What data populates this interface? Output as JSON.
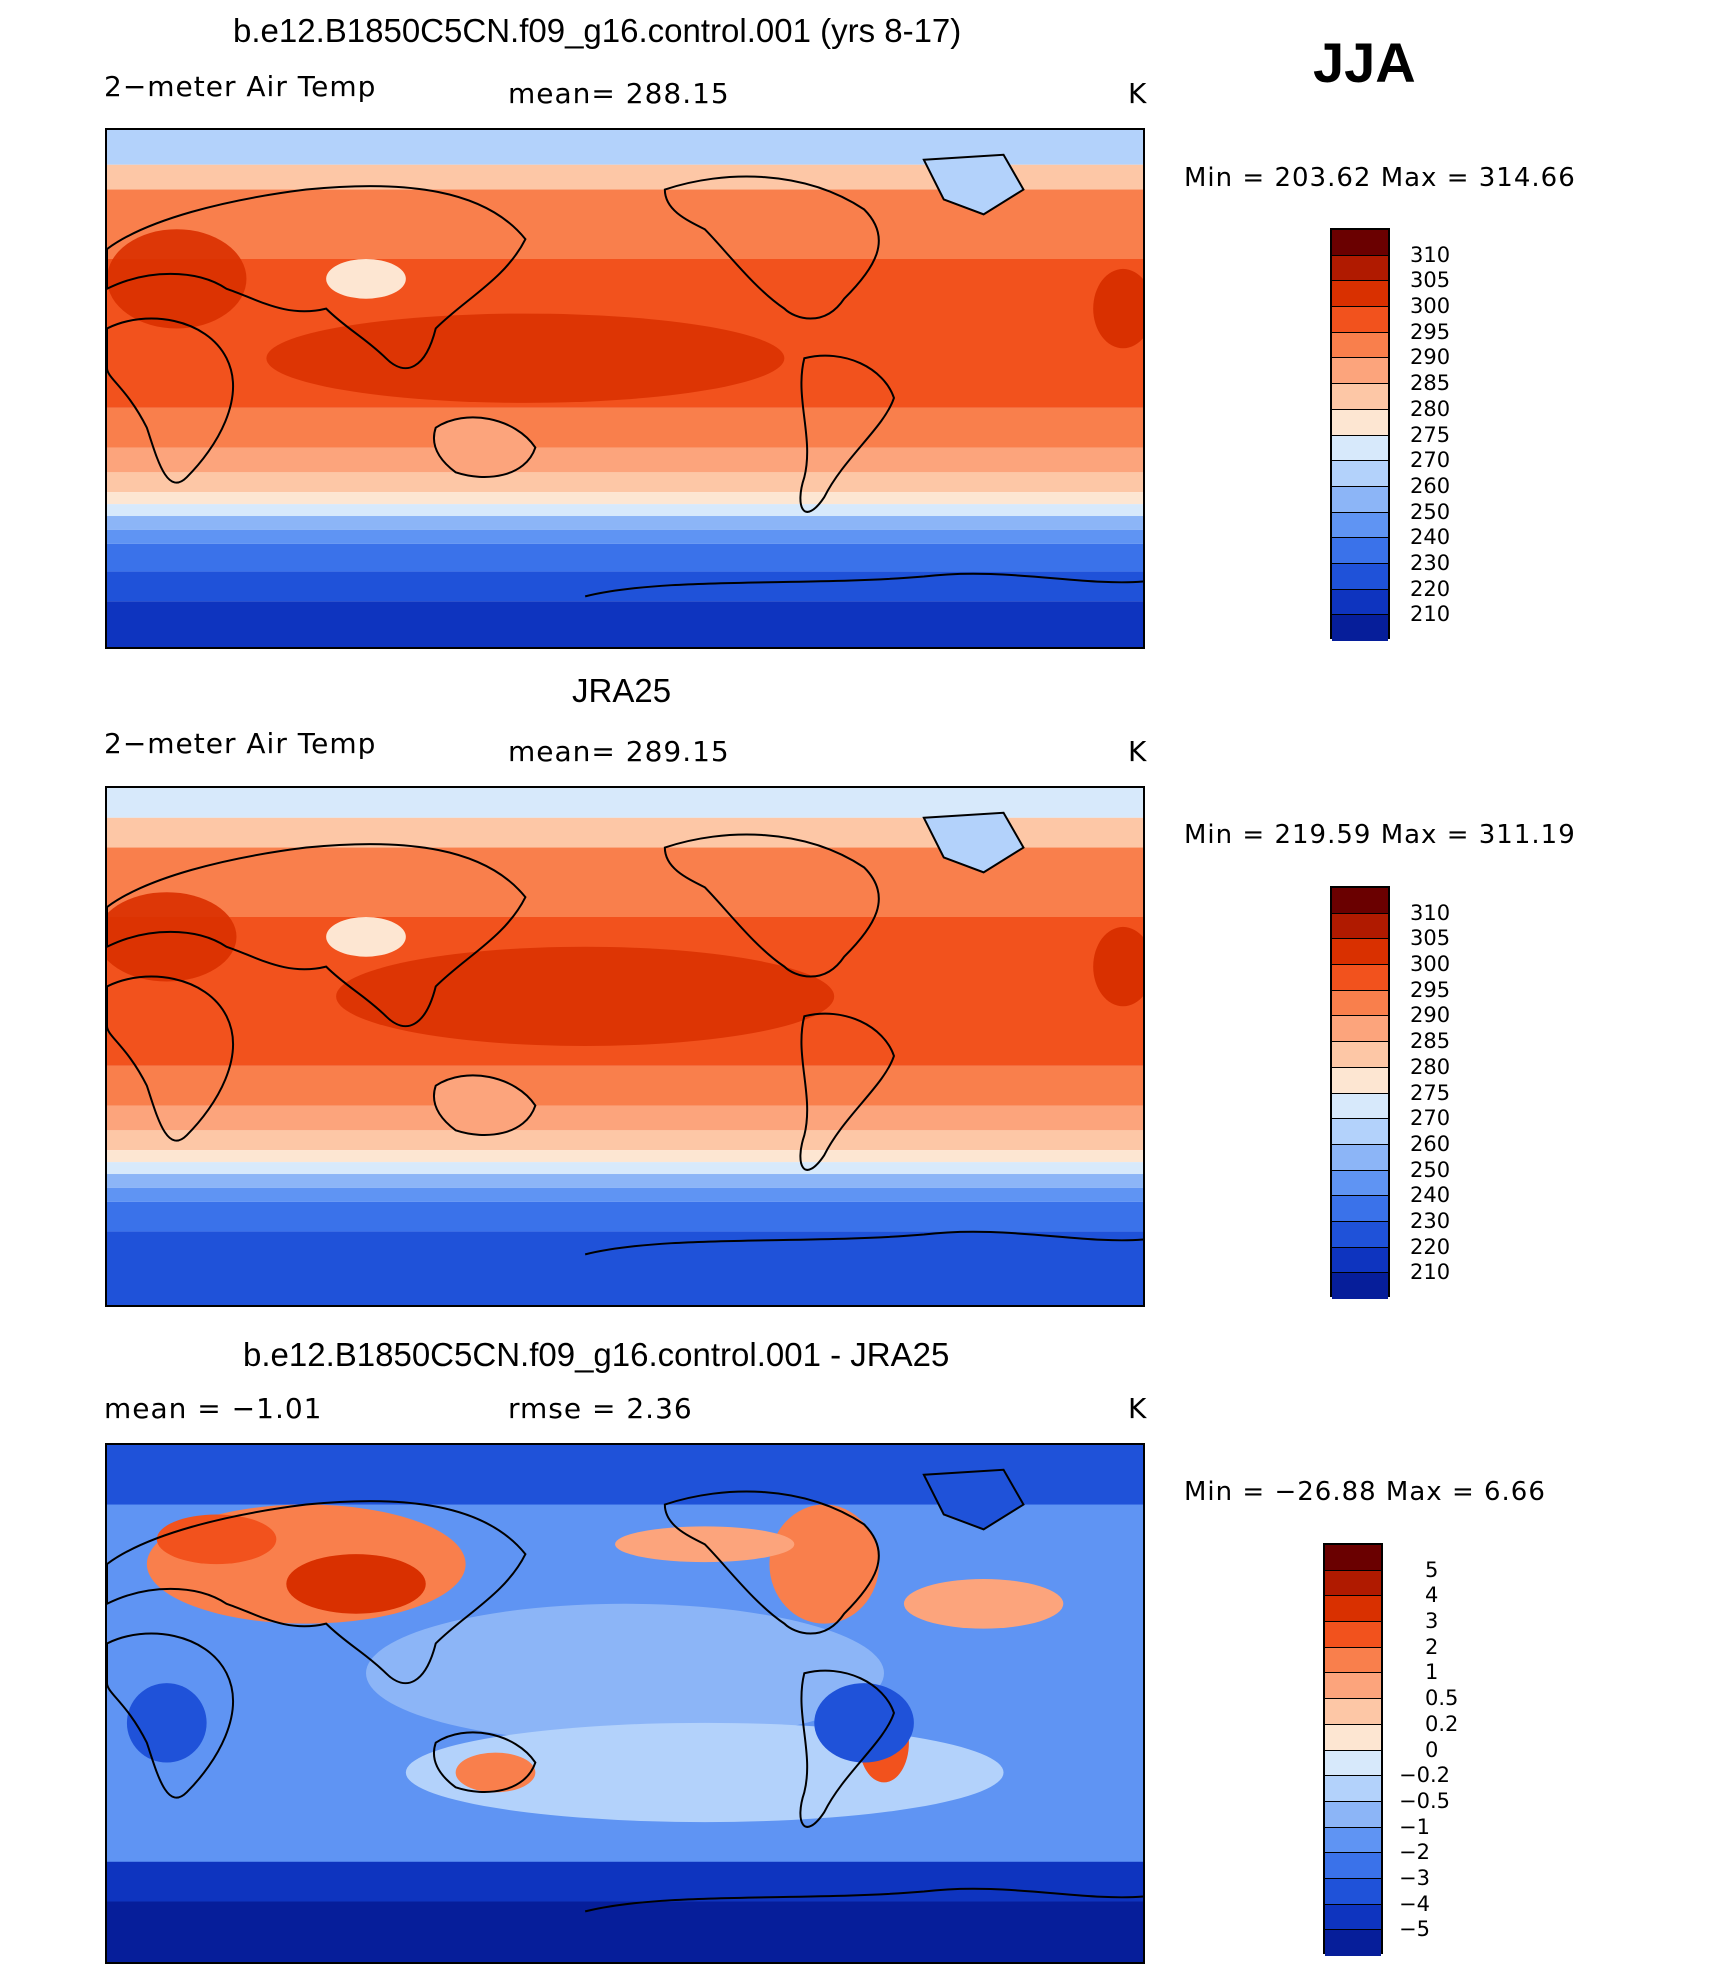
{
  "season": "JJA",
  "colors": {
    "temp_palette": [
      "#6a0000",
      "#b01a00",
      "#d93000",
      "#f2521d",
      "#f97f4c",
      "#fca47c",
      "#fdc7a6",
      "#fde6d2",
      "#d7e9fb",
      "#b3d2fb",
      "#8cb5f7",
      "#5f94f3",
      "#3a72ea",
      "#1f52d9",
      "#0e34bf",
      "#061e9a",
      "#020b70"
    ],
    "diff_palette": [
      "#6a0000",
      "#b01a00",
      "#d93000",
      "#f2521d",
      "#f97f4c",
      "#fca47c",
      "#fdc7a6",
      "#fde6d2",
      "#d7e9fb",
      "#b3d2fb",
      "#8cb5f7",
      "#5f94f3",
      "#3a72ea",
      "#1f52d9",
      "#0e34bf",
      "#061e9a",
      "#020b70"
    ]
  },
  "panels": [
    {
      "title": "b.e12.B1850C5CN.f09_g16.control.001 (yrs 8-17)",
      "left_label": "2−meter Air Temp",
      "center_label": "mean=  288.15",
      "units": "K",
      "minmax": "Min  =  203.62  Max  =  314.66",
      "colorbar_labels": [
        "310",
        "305",
        "300",
        "295",
        "290",
        "285",
        "280",
        "275",
        "270",
        "260",
        "250",
        "240",
        "230",
        "220",
        "210"
      ],
      "mean_value": 288.15,
      "min_value": 203.62,
      "max_value": 314.66
    },
    {
      "title": "JRA25",
      "left_label": "2−meter Air Temp",
      "center_label": "mean=  289.15",
      "units": "K",
      "minmax": "Min  =  219.59  Max  =  311.19",
      "colorbar_labels": [
        "310",
        "305",
        "300",
        "295",
        "290",
        "285",
        "280",
        "275",
        "270",
        "260",
        "250",
        "240",
        "230",
        "220",
        "210"
      ],
      "mean_value": 289.15,
      "min_value": 219.59,
      "max_value": 311.19
    },
    {
      "title": "b.e12.B1850C5CN.f09_g16.control.001 - JRA25",
      "left_label": "mean  =    −1.01",
      "center_label": "rmse  =     2.36",
      "units": "K",
      "minmax": "Min  =  −26.88  Max  =     6.66",
      "colorbar_labels": [
        "5",
        "4",
        "3",
        "2",
        "1",
        "0.5",
        "0.2",
        "0",
        "−0.2",
        "−0.5",
        "−1",
        "−2",
        "−3",
        "−4",
        "−5"
      ],
      "mean_value": -1.01,
      "rmse_value": 2.36,
      "min_value": -26.88,
      "max_value": 6.66
    }
  ]
}
